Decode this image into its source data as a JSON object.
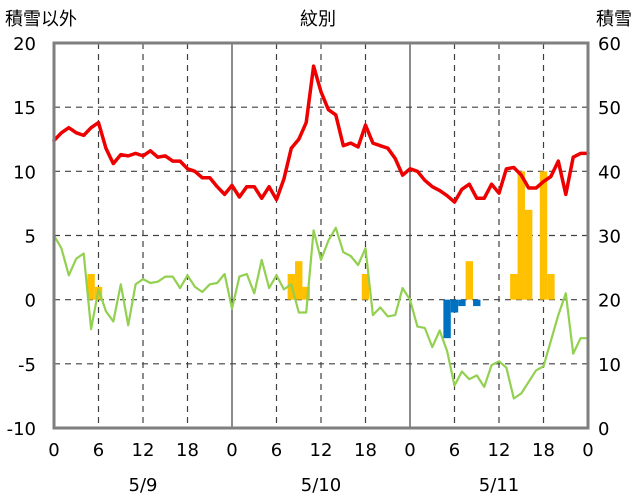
{
  "chart_data": {
    "type": "line",
    "title": "紋別",
    "left_axis_label": "積雪以外",
    "right_axis_label": "積雪",
    "left_ylim": [
      -10,
      20
    ],
    "left_ticks": [
      "20",
      "15",
      "10",
      "5",
      "0",
      "-5",
      "-10"
    ],
    "right_ylim": [
      0,
      60
    ],
    "right_ticks": [
      "60",
      "50",
      "40",
      "30",
      "20",
      "10",
      "0"
    ],
    "x_hours": [
      0,
      72
    ],
    "x_tick_labels": [
      "0",
      "6",
      "12",
      "18",
      "0",
      "6",
      "12",
      "18",
      "0",
      "6",
      "12",
      "18",
      "0"
    ],
    "date_labels": [
      "5/9",
      "5/10",
      "5/11"
    ],
    "grid": "dashed vertical at 12h; solid at day boundaries",
    "series": [
      {
        "color": "#ee0000",
        "axis": "left",
        "x": [
          0,
          1,
          2,
          3,
          4,
          5,
          6,
          7,
          8,
          9,
          10,
          11,
          12,
          13,
          14,
          15,
          16,
          17,
          18,
          19,
          20,
          21,
          22,
          23,
          24,
          25,
          26,
          27,
          28,
          29,
          30,
          31,
          32,
          33,
          34,
          35,
          36,
          37,
          38,
          39,
          40,
          41,
          42,
          43,
          44,
          45,
          46,
          47,
          48,
          49,
          50,
          51,
          52,
          53,
          54,
          55,
          56,
          57,
          58,
          59,
          60,
          61,
          62,
          63,
          64,
          65,
          66,
          67,
          68,
          69,
          70,
          71,
          72
        ],
        "values": [
          12.4,
          13.0,
          13.4,
          13.0,
          12.8,
          13.4,
          13.8,
          11.8,
          10.6,
          11.3,
          11.2,
          11.4,
          11.2,
          11.6,
          11.1,
          11.2,
          10.8,
          10.8,
          10.2,
          10.0,
          9.5,
          9.5,
          8.8,
          8.2,
          8.9,
          8.0,
          8.8,
          8.8,
          7.9,
          8.8,
          7.8,
          9.4,
          11.8,
          12.5,
          13.8,
          18.2,
          16.2,
          14.8,
          14.4,
          12.0,
          12.2,
          11.9,
          13.6,
          12.2,
          12.0,
          11.8,
          11.0,
          9.7,
          10.2,
          10.0,
          9.3,
          8.8,
          8.5,
          8.1,
          7.6,
          8.6,
          9.0,
          7.9,
          7.9,
          9.0,
          8.3,
          10.2,
          10.3,
          9.7,
          8.7,
          8.7,
          9.2,
          9.6,
          10.8,
          8.2,
          11.1,
          11.4,
          11.4
        ]
      },
      {
        "color": "#92d050",
        "axis": "left",
        "x": [
          0,
          1,
          2,
          3,
          4,
          5,
          6,
          7,
          8,
          9,
          10,
          11,
          12,
          13,
          14,
          15,
          16,
          17,
          18,
          19,
          20,
          21,
          22,
          23,
          24,
          25,
          26,
          27,
          28,
          29,
          30,
          31,
          32,
          33,
          34,
          35,
          36,
          37,
          38,
          39,
          40,
          41,
          42,
          43,
          44,
          45,
          46,
          47,
          48,
          49,
          50,
          51,
          52,
          53,
          54,
          55,
          56,
          57,
          58,
          59,
          60,
          61,
          62,
          63,
          64,
          65,
          66,
          67,
          68,
          69,
          70,
          71,
          72
        ],
        "values": [
          5.0,
          4.0,
          1.9,
          3.2,
          3.6,
          -2.3,
          0.8,
          -0.9,
          -1.7,
          1.2,
          -2.0,
          1.2,
          1.6,
          1.3,
          1.4,
          1.8,
          1.8,
          0.9,
          1.9,
          1.0,
          0.6,
          1.2,
          1.3,
          2.0,
          -0.7,
          1.8,
          2.0,
          0.5,
          3.1,
          0.9,
          1.9,
          0.8,
          1.2,
          -1.0,
          -1.0,
          5.4,
          3.1,
          4.6,
          5.6,
          3.7,
          3.4,
          2.7,
          4.0,
          -1.2,
          -0.6,
          -1.3,
          -1.2,
          0.9,
          0.0,
          -2.1,
          -2.2,
          -3.7,
          -2.4,
          -4.0,
          -6.7,
          -5.6,
          -6.2,
          -5.9,
          -6.8,
          -5.1,
          -4.8,
          -5.3,
          -7.7,
          -7.3,
          -6.4,
          -5.5,
          -5.2,
          -3.2,
          -1.2,
          0.5,
          -4.2,
          -3.0,
          -3.0
        ]
      },
      {
        "color": "#7030a0",
        "axis": "right",
        "x": [
          0,
          72
        ],
        "values": [
          0,
          0
        ]
      }
    ],
    "bars": [
      {
        "color": "#ffc000",
        "axis": "left",
        "x": [
          5,
          6,
          32,
          33,
          34,
          42,
          56,
          62,
          63,
          64,
          66,
          67
        ],
        "values": [
          2.0,
          1.0,
          2.0,
          3.0,
          1.0,
          2.0,
          3.0,
          2.0,
          10.0,
          7.0,
          10.0,
          2.0
        ]
      },
      {
        "color": "#0070c0",
        "axis": "left",
        "x": [
          53,
          54,
          55,
          57
        ],
        "values": [
          -3.0,
          -1.0,
          -0.5,
          -0.5
        ]
      }
    ]
  }
}
